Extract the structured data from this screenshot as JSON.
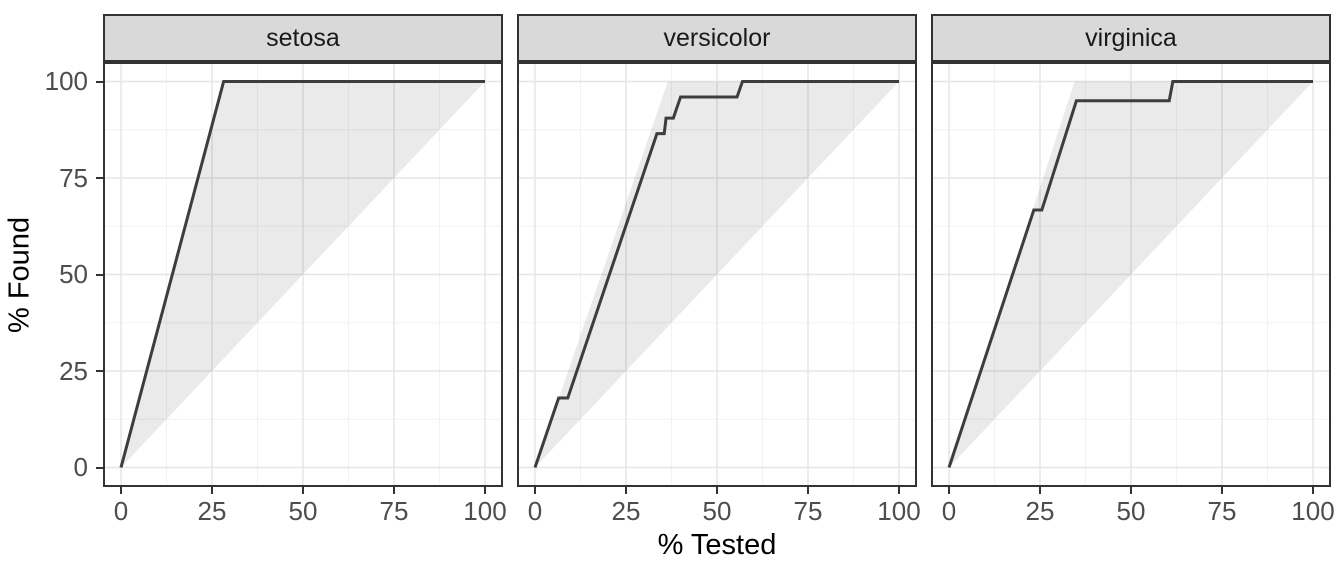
{
  "chart_data": {
    "type": "line",
    "title": "",
    "xlabel": "% Tested",
    "ylabel": "% Found",
    "xlim": [
      0,
      100
    ],
    "ylim": [
      0,
      100
    ],
    "x_ticks": [
      0,
      25,
      50,
      75,
      100
    ],
    "y_ticks": [
      0,
      25,
      50,
      75,
      100
    ],
    "grid": "on",
    "legend": "none",
    "description": "Faceted gain curves: dark line is the model gain curve per species; shaded triangle spans from the diagonal (random sorting) up to the ideal wizard curve.",
    "facets": [
      {
        "label": "setosa",
        "curve": [
          [
            0,
            0
          ],
          [
            28.2,
            100
          ],
          [
            100,
            100
          ]
        ],
        "ideal_region": [
          [
            0,
            0
          ],
          [
            28.2,
            100
          ],
          [
            100,
            100
          ]
        ]
      },
      {
        "label": "versicolor",
        "curve": [
          [
            0,
            0
          ],
          [
            6.5,
            18
          ],
          [
            9,
            18
          ],
          [
            33.5,
            86.5
          ],
          [
            35.5,
            86.5
          ],
          [
            36,
            90.5
          ],
          [
            38,
            90.5
          ],
          [
            40,
            96
          ],
          [
            55.5,
            96
          ],
          [
            57,
            100
          ],
          [
            100,
            100
          ]
        ],
        "ideal_region": [
          [
            0,
            0
          ],
          [
            36.5,
            100
          ],
          [
            100,
            100
          ]
        ]
      },
      {
        "label": "virginica",
        "curve": [
          [
            0,
            0
          ],
          [
            23.3,
            66.7
          ],
          [
            25.5,
            66.7
          ],
          [
            35,
            95
          ],
          [
            60.5,
            95
          ],
          [
            61.5,
            100
          ],
          [
            100,
            100
          ]
        ],
        "ideal_region": [
          [
            0,
            0
          ],
          [
            34.5,
            100
          ],
          [
            100,
            100
          ]
        ]
      }
    ]
  },
  "style": {
    "curve_color": "#3d3d3d",
    "ideal_region_fill": "rgba(51,51,51,0.10)",
    "strip_bg": "#d9d9d9",
    "panel_border": "#333333",
    "grid_major": "#e6e6e6",
    "grid_minor": "#f2f2f2",
    "tick_mark_color": "#333333",
    "tick_label_color": "#4d4d4d",
    "axis_title_color": "#000000"
  }
}
